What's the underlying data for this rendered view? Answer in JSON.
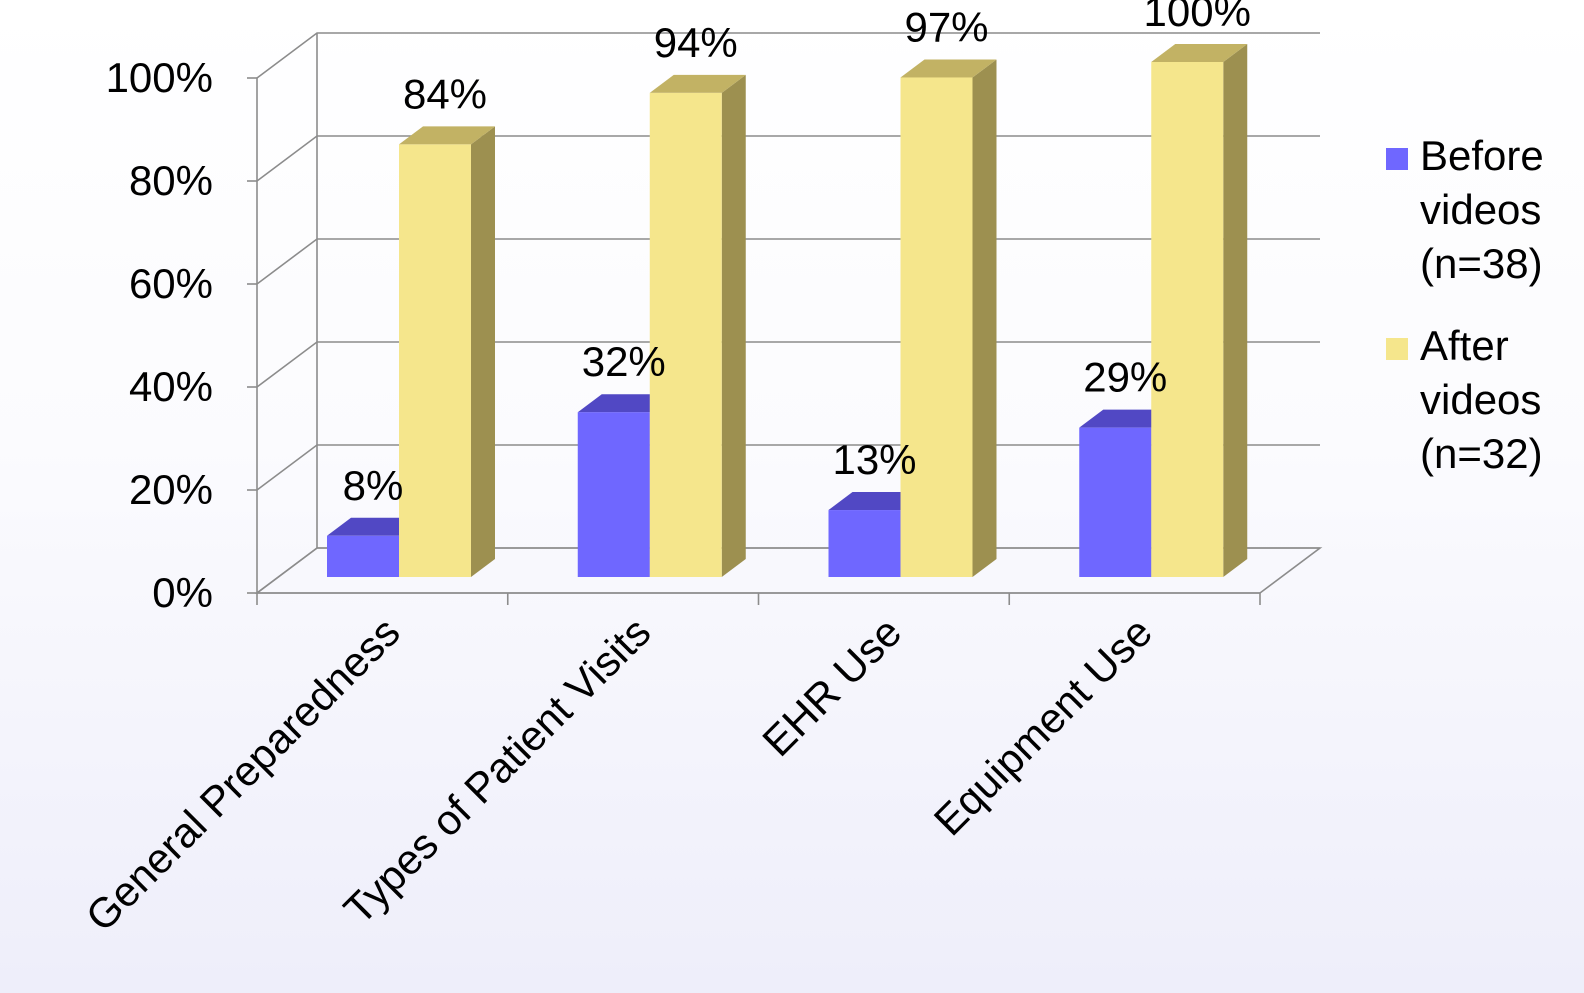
{
  "chart_data": {
    "type": "bar",
    "title": "",
    "xlabel": "",
    "ylabel": "",
    "ylim": [
      0,
      100
    ],
    "y_ticks": [
      0,
      20,
      40,
      60,
      80,
      100
    ],
    "y_tick_suffix": "%",
    "categories": [
      "General Preparedness",
      "Types of Patient Visits",
      "EHR Use",
      "Equipment Use"
    ],
    "series": [
      {
        "name": "Before videos (n=38)",
        "values": [
          8,
          32,
          13,
          29
        ],
        "color": "#6f67ff",
        "top_color": "#5148c4",
        "side_color": "#3f37a8"
      },
      {
        "name": "After videos (n=32)",
        "values": [
          84,
          94,
          97,
          100
        ],
        "color": "#f5e68c",
        "top_color": "#c2b264",
        "side_color": "#9d9050"
      }
    ],
    "data_label_suffix": "%",
    "grid": true,
    "legend_position": "right",
    "style": "3d-clustered-column"
  }
}
